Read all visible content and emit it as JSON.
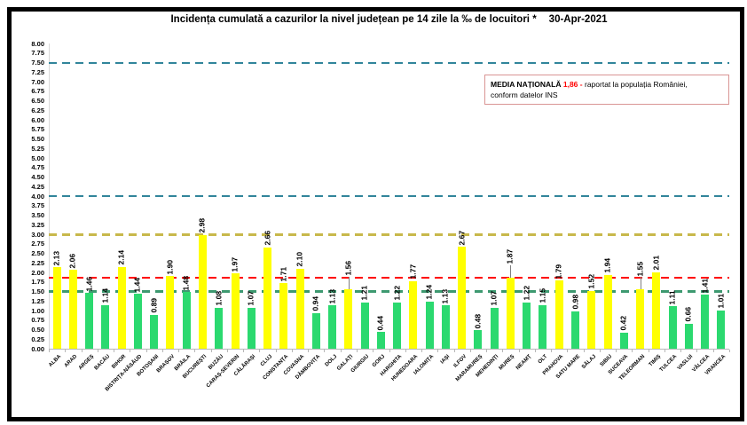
{
  "chart_data": {
    "type": "bar",
    "title": "Incidența cumulată a cazurilor la nivel județean pe 14 zile la ‰ de locuitori *",
    "date": "30-Apr-2021",
    "ylim": [
      0,
      8
    ],
    "ytick_step": 0.25,
    "grid": false,
    "legend": "none",
    "categories": [
      "ALBA",
      "ARAD",
      "ARGEȘ",
      "BACĂU",
      "BIHOR",
      "BISTRIȚA-NĂSĂUD",
      "BOTOȘANI",
      "BRAȘOV",
      "BRĂILA",
      "BUCUREȘTI",
      "BUZĂU",
      "CARAȘ-SEVERIN",
      "CĂLĂRAȘI",
      "CLUJ",
      "CONSTANȚA",
      "COVASNA",
      "DÂMBOVIȚA",
      "DOLJ",
      "GALAȚI",
      "GIURGIU",
      "GORJ",
      "HARGHITA",
      "HUNEDOARA",
      "IALOMIȚA",
      "IAȘI",
      "ILFOV",
      "MARAMUREȘ",
      "MEHEDINȚI",
      "MUREȘ",
      "NEAMȚ",
      "OLT",
      "PRAHOVA",
      "SATU MARE",
      "SĂLAJ",
      "SIBIU",
      "SUCEAVA",
      "TELEORMAN",
      "TIMIȘ",
      "TULCEA",
      "VASLUI",
      "VÂLCEA",
      "VRANCEA"
    ],
    "values": [
      2.13,
      2.06,
      1.46,
      1.14,
      2.14,
      1.44,
      0.89,
      1.9,
      1.48,
      2.98,
      1.08,
      1.97,
      1.07,
      2.66,
      1.71,
      2.1,
      0.94,
      1.13,
      1.56,
      1.21,
      0.44,
      1.22,
      1.77,
      1.24,
      1.13,
      2.67,
      0.48,
      1.07,
      1.87,
      1.22,
      1.15,
      1.79,
      0.98,
      1.52,
      1.94,
      0.42,
      1.55,
      2.01,
      1.11,
      0.66,
      1.41,
      1.01
    ],
    "bar_color_rule": {
      "threshold": 1.5,
      "at_or_above": "#ffff00",
      "below": "#2bd96f"
    },
    "leader_label_categories": [
      "GALAȚI",
      "MUREȘ",
      "TELEORMAN"
    ],
    "reference_lines": [
      {
        "value": 7.5,
        "color": "#31859b",
        "thickness": 2
      },
      {
        "value": 4.0,
        "color": "#31859b",
        "thickness": 2
      },
      {
        "value": 3.0,
        "color": "#c8b84b",
        "thickness": 3
      },
      {
        "value": 1.86,
        "color": "#ff0000",
        "thickness": 2
      },
      {
        "value": 1.5,
        "color": "#3d9970",
        "thickness": 3
      }
    ],
    "annotation": {
      "bold": "MEDIA NAȚIONALĂ",
      "value": "1,86 -",
      "value_color": "#ff0000",
      "text": "raportat la populația României,",
      "line2": "conform datelor INS",
      "border_color": "#d99594"
    }
  }
}
